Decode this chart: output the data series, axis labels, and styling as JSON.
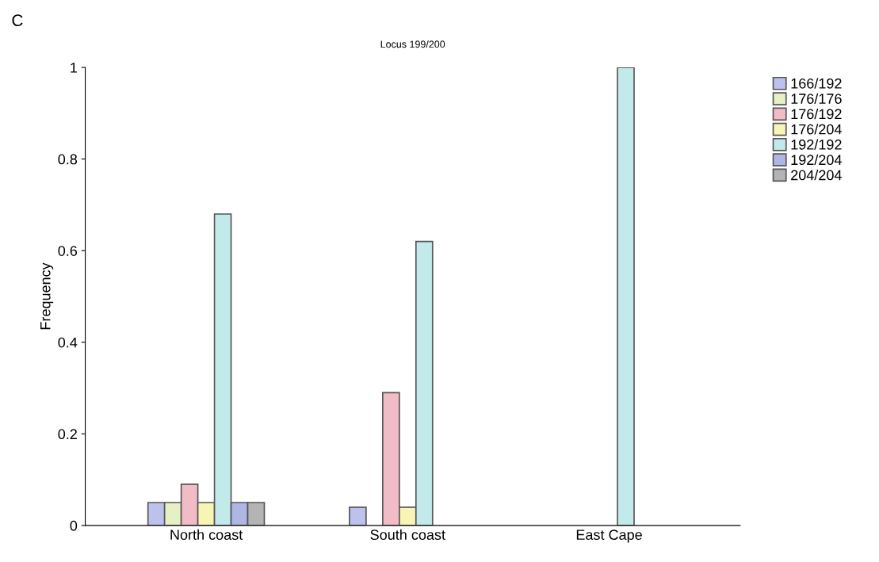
{
  "chart_data": {
    "type": "bar",
    "title": "Locus 199/200",
    "ylabel": "Frequency",
    "annotations": [
      "C"
    ],
    "categories": [
      "North coast",
      "South coast",
      "East Cape"
    ],
    "series": [
      {
        "name": "166/192",
        "color": "#bcc2ec",
        "values": [
          0.05,
          0.04,
          null
        ]
      },
      {
        "name": "176/176",
        "color": "#e6f0c4",
        "values": [
          0.05,
          null,
          null
        ]
      },
      {
        "name": "176/192",
        "color": "#f2bcc6",
        "values": [
          0.09,
          0.29,
          null
        ]
      },
      {
        "name": "176/204",
        "color": "#f8f4b4",
        "values": [
          0.05,
          0.04,
          null
        ]
      },
      {
        "name": "192/192",
        "color": "#c2eaea",
        "values": [
          0.68,
          0.62,
          1.0
        ]
      },
      {
        "name": "192/204",
        "color": "#b0b6e4",
        "values": [
          0.05,
          null,
          null
        ]
      },
      {
        "name": "204/204",
        "color": "#b4b4b4",
        "values": [
          0.05,
          null,
          null
        ]
      }
    ],
    "ylim": [
      0,
      1
    ],
    "yticks": [
      0,
      0.2,
      0.4,
      0.6,
      0.8,
      1
    ],
    "legend": "top right",
    "grid": false
  }
}
